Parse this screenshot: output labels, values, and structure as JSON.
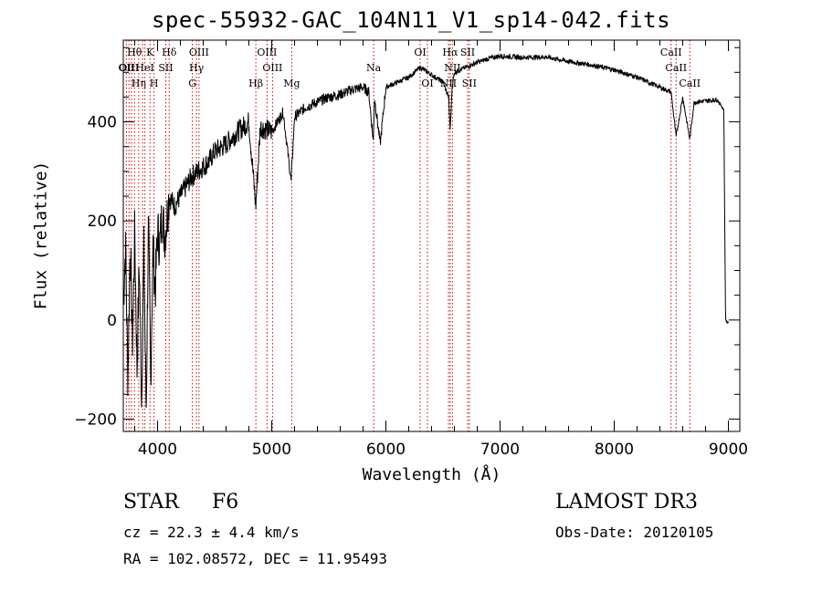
{
  "chart_data": {
    "type": "line",
    "title": "spec-55932-GAC_104N11_V1_sp14-042.fits",
    "xlabel": "Wavelength (Å)",
    "ylabel": "Flux (relative)",
    "xlim": [
      3700,
      9100
    ],
    "ylim": [
      -225,
      565
    ],
    "xticks": [
      4000,
      5000,
      6000,
      7000,
      8000,
      9000
    ],
    "xtick_labels": [
      "4000",
      "5000",
      "6000",
      "7000",
      "8000",
      "9000"
    ],
    "yticks": [
      -200,
      0,
      200,
      400
    ],
    "ytick_labels": [
      "−200",
      "0",
      "200",
      "400"
    ],
    "series": [
      {
        "name": "spectrum",
        "x": [
          3700,
          3720,
          3740,
          3760,
          3780,
          3800,
          3820,
          3840,
          3860,
          3880,
          3900,
          3920,
          3940,
          3960,
          3980,
          4000,
          4020,
          4040,
          4060,
          4080,
          4100,
          4150,
          4200,
          4250,
          4300,
          4350,
          4400,
          4450,
          4500,
          4600,
          4700,
          4800,
          4860,
          4900,
          5000,
          5100,
          5170,
          5200,
          5300,
          5400,
          5500,
          5600,
          5700,
          5800,
          5850,
          5890,
          5900,
          5950,
          6000,
          6100,
          6200,
          6300,
          6400,
          6500,
          6550,
          6563,
          6580,
          6600,
          6700,
          6800,
          6900,
          7000,
          7200,
          7400,
          7600,
          7800,
          8000,
          8200,
          8400,
          8498,
          8542,
          8600,
          8662,
          8700,
          8800,
          8900,
          8960,
          8975,
          8990,
          9000
        ],
        "y": [
          40,
          150,
          -120,
          160,
          -50,
          180,
          -100,
          120,
          -160,
          140,
          -190,
          200,
          -120,
          150,
          60,
          180,
          150,
          220,
          170,
          200,
          250,
          230,
          250,
          270,
          290,
          300,
          310,
          320,
          340,
          355,
          380,
          400,
          230,
          390,
          380,
          420,
          280,
          410,
          430,
          440,
          450,
          455,
          465,
          470,
          460,
          360,
          450,
          355,
          470,
          480,
          490,
          510,
          495,
          480,
          450,
          380,
          470,
          500,
          510,
          520,
          528,
          533,
          530,
          531,
          522,
          515,
          505,
          490,
          470,
          460,
          370,
          450,
          365,
          440,
          442,
          445,
          425,
          0,
          -5,
          -5
        ]
      }
    ],
    "lines": {
      "positions": [
        3727,
        3750,
        3771,
        3798,
        3835,
        3869,
        3889,
        3934,
        3969,
        4072,
        4102,
        4305,
        4341,
        4363,
        4861,
        4959,
        5007,
        5175,
        5893,
        6300,
        6364,
        6548,
        6563,
        6583,
        6716,
        6731,
        8498,
        8542,
        8662
      ],
      "labels": [
        {
          "text": "Hθ",
          "wl": 3798
        },
        {
          "text": "K",
          "wl": 3934
        },
        {
          "text": "Hδ",
          "wl": 4102
        },
        {
          "text": "OIII",
          "wl": 4363
        },
        {
          "text": "OIII",
          "wl": 4959
        },
        {
          "text": "OI",
          "wl": 6300
        },
        {
          "text": "Hα",
          "wl": 6563
        },
        {
          "text": "SII",
          "wl": 6716
        },
        {
          "text": "CaII",
          "wl": 8498
        },
        {
          "text": "OII",
          "wl": 3727
        },
        {
          "text": "HeI",
          "wl": 3889
        },
        {
          "text": "SII",
          "wl": 4072
        },
        {
          "text": "Hγ",
          "wl": 4341
        },
        {
          "text": "OIII",
          "wl": 5007
        },
        {
          "text": "Na",
          "wl": 5893
        },
        {
          "text": "NII",
          "wl": 6583
        },
        {
          "text": "CaII",
          "wl": 8542
        },
        {
          "text": "OIII",
          "wl": 3750
        },
        {
          "text": "Hη",
          "wl": 3835
        },
        {
          "text": "H",
          "wl": 3969
        },
        {
          "text": "G",
          "wl": 4305
        },
        {
          "text": "Hβ",
          "wl": 4861
        },
        {
          "text": "Mg",
          "wl": 5175
        },
        {
          "text": "OI",
          "wl": 6364
        },
        {
          "text": "NII",
          "wl": 6548
        },
        {
          "text": "SII",
          "wl": 6731
        },
        {
          "text": "CaII",
          "wl": 8662
        }
      ]
    },
    "colors": {
      "spectrum": "#000000",
      "lines": "#cc0000",
      "axes": "#000000"
    }
  },
  "info": {
    "class": "STAR",
    "subclass": "F6",
    "survey": "LAMOST DR3",
    "cz": "cz = 22.3 ± 4.4 km/s",
    "obs_date": "Obs-Date: 20120105",
    "radec": "RA = 102.08572, DEC =  11.95493"
  }
}
